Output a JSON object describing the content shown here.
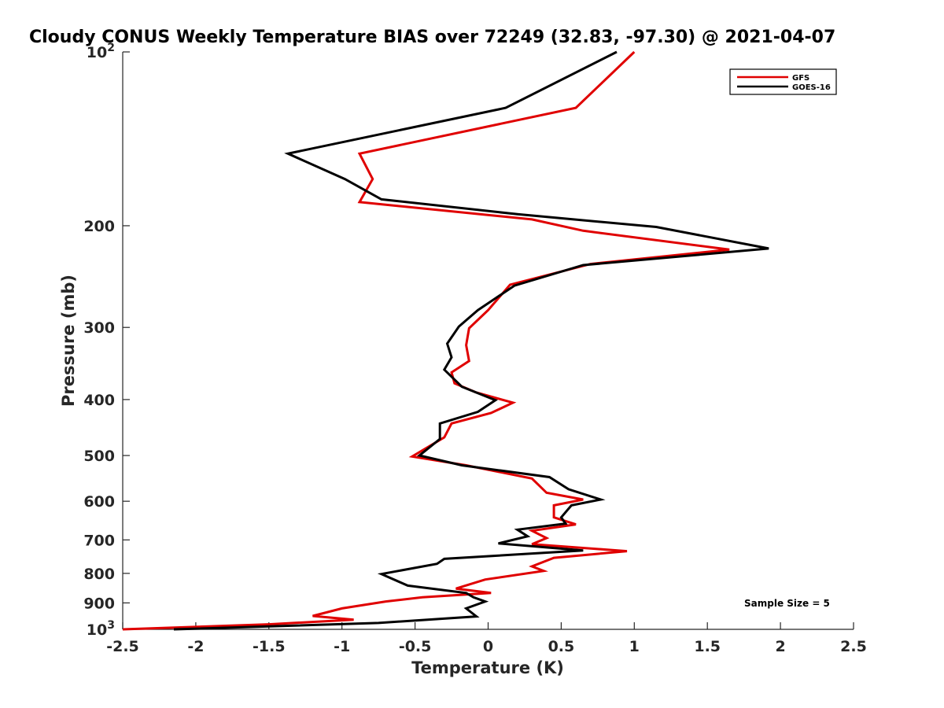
{
  "chart_data": {
    "type": "line",
    "title": "Cloudy CONUS Weekly Temperature BIAS over 72249 (32.83, -97.30) @ 2021-04-07",
    "xlabel": "Temperature (K)",
    "ylabel": "Pressure (mb)",
    "xlim": [
      -2.5,
      2.5
    ],
    "ylim": [
      1000,
      100
    ],
    "y_scale": "log",
    "x_ticks": [
      "-2.5",
      "-2",
      "-1.5",
      "-1",
      "-0.5",
      "0",
      "0.5",
      "1",
      "1.5",
      "2",
      "2.5"
    ],
    "y_ticks": [
      {
        "value": 100,
        "base": "10",
        "exp": "2"
      },
      {
        "value": 200,
        "label": "200"
      },
      {
        "value": 300,
        "label": "300"
      },
      {
        "value": 400,
        "label": "400"
      },
      {
        "value": 500,
        "label": "500"
      },
      {
        "value": 600,
        "label": "600"
      },
      {
        "value": 700,
        "label": "700"
      },
      {
        "value": 800,
        "label": "800"
      },
      {
        "value": 900,
        "label": "900"
      },
      {
        "value": 1000,
        "base": "10",
        "exp": "3"
      }
    ],
    "legend_position": "top-right",
    "grid": false,
    "annotation": "Sample Size = 5",
    "series": [
      {
        "name": "GFS",
        "color": "#e00000",
        "points": [
          [
            1.0,
            100
          ],
          [
            0.6,
            125
          ],
          [
            -0.88,
            150
          ],
          [
            -0.79,
            166
          ],
          [
            -0.88,
            182
          ],
          [
            0.3,
            195
          ],
          [
            0.65,
            204
          ],
          [
            1.65,
            220
          ],
          [
            0.7,
            233
          ],
          [
            0.15,
            253
          ],
          [
            0.0,
            280
          ],
          [
            -0.13,
            301
          ],
          [
            -0.15,
            322
          ],
          [
            -0.13,
            343
          ],
          [
            -0.25,
            359
          ],
          [
            -0.23,
            375
          ],
          [
            -0.08,
            389
          ],
          [
            0.17,
            405
          ],
          [
            0.02,
            422
          ],
          [
            -0.25,
            440
          ],
          [
            -0.3,
            465
          ],
          [
            -0.52,
            502
          ],
          [
            -0.15,
            520
          ],
          [
            0.3,
            548
          ],
          [
            0.4,
            580
          ],
          [
            0.65,
            596
          ],
          [
            0.45,
            610
          ],
          [
            0.45,
            640
          ],
          [
            0.6,
            658
          ],
          [
            0.3,
            675
          ],
          [
            0.4,
            695
          ],
          [
            0.3,
            712
          ],
          [
            0.95,
            732
          ],
          [
            0.45,
            752
          ],
          [
            0.3,
            778
          ],
          [
            0.38,
            792
          ],
          [
            -0.02,
            820
          ],
          [
            -0.22,
            850
          ],
          [
            0.02,
            865
          ],
          [
            -0.45,
            880
          ],
          [
            -0.7,
            895
          ],
          [
            -1.0,
            920
          ],
          [
            -1.2,
            948
          ],
          [
            -0.92,
            962
          ],
          [
            -1.5,
            980
          ],
          [
            -2.5,
            1000
          ]
        ]
      },
      {
        "name": "GOES-16",
        "color": "#000000",
        "points": [
          [
            0.88,
            100
          ],
          [
            0.12,
            125
          ],
          [
            -1.37,
            150
          ],
          [
            -0.98,
            166
          ],
          [
            -0.73,
            180
          ],
          [
            0.2,
            191
          ],
          [
            1.15,
            201
          ],
          [
            1.92,
            219
          ],
          [
            0.65,
            234
          ],
          [
            0.18,
            254
          ],
          [
            -0.07,
            280
          ],
          [
            -0.2,
            299
          ],
          [
            -0.28,
            320
          ],
          [
            -0.25,
            338
          ],
          [
            -0.3,
            355
          ],
          [
            -0.18,
            380
          ],
          [
            0.05,
            401
          ],
          [
            -0.07,
            420
          ],
          [
            -0.33,
            440
          ],
          [
            -0.33,
            468
          ],
          [
            -0.47,
            500
          ],
          [
            -0.18,
            520
          ],
          [
            0.42,
            545
          ],
          [
            0.55,
            572
          ],
          [
            0.77,
            596
          ],
          [
            0.57,
            610
          ],
          [
            0.5,
            640
          ],
          [
            0.53,
            656
          ],
          [
            0.2,
            672
          ],
          [
            0.27,
            690
          ],
          [
            0.07,
            710
          ],
          [
            0.65,
            730
          ],
          [
            -0.3,
            755
          ],
          [
            -0.35,
            770
          ],
          [
            -0.73,
            802
          ],
          [
            -0.55,
            840
          ],
          [
            -0.15,
            865
          ],
          [
            -0.1,
            880
          ],
          [
            -0.02,
            895
          ],
          [
            -0.15,
            920
          ],
          [
            -0.08,
            950
          ],
          [
            -0.75,
            975
          ],
          [
            -2.15,
            1000
          ]
        ]
      }
    ]
  }
}
